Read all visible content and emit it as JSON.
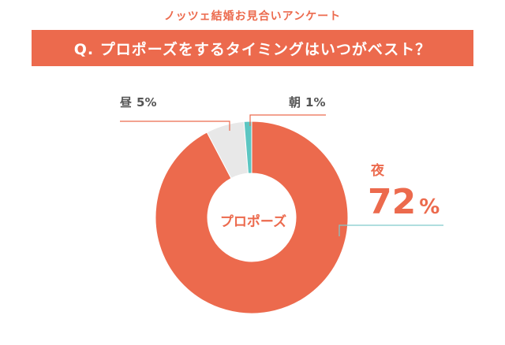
{
  "header": {
    "subtitle": "ノッツェ結婚お見合いアンケート",
    "question": "Q. プロポーズをするタイミングはいつがベスト？"
  },
  "colors": {
    "accent": "#ec6a4d",
    "gray": "#e8e8e8",
    "teal": "#5cc6c2",
    "line_teal": "#7fc9cc"
  },
  "chart_data": {
    "type": "pie",
    "donut": true,
    "center_label": "プロポーズ",
    "slices": [
      {
        "label": "夜",
        "value": 72,
        "display": "72",
        "unit": "%",
        "color": "#ec6a4d"
      },
      {
        "label": "昼",
        "value": 5,
        "display": "5",
        "unit": "%",
        "color": "#e8e8e8"
      },
      {
        "label": "朝",
        "value": 1,
        "display": "1",
        "unit": "%",
        "color": "#5cc6c2"
      }
    ]
  }
}
